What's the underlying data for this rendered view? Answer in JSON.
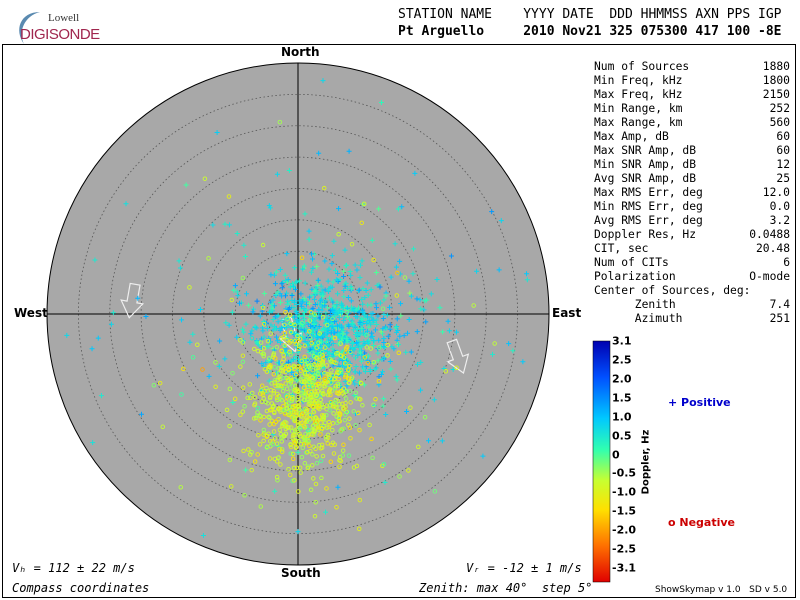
{
  "header": {
    "logo_top": "Lowell",
    "logo_bottom": "DIGISONDE",
    "line1": "STATION NAME    YYYY DATE  DDD HHMMSS AXN PPS IGP",
    "line2": "Pt Arguello     2010 Nov21 325 075300 417 100 -8E"
  },
  "stats": [
    {
      "label": "Num of Sources",
      "value": "1880"
    },
    {
      "label": "Min Freq, kHz",
      "value": "1800"
    },
    {
      "label": "Max Freq, kHz",
      "value": "2150"
    },
    {
      "label": "Min Range, km",
      "value": "252"
    },
    {
      "label": "Max Range, km",
      "value": "560"
    },
    {
      "label": "Max Amp, dB",
      "value": "60"
    },
    {
      "label": "Max SNR Amp, dB",
      "value": "60"
    },
    {
      "label": "Min SNR Amp, dB",
      "value": "12"
    },
    {
      "label": "Avg SNR Amp, dB",
      "value": "25"
    },
    {
      "label": "Max RMS Err, deg",
      "value": "12.0"
    },
    {
      "label": "Min RMS Err, deg",
      "value": "0.0"
    },
    {
      "label": "Avg RMS Err, deg",
      "value": "3.2"
    },
    {
      "label": "Doppler Res, Hz",
      "value": "0.0488"
    },
    {
      "label": "CIT, sec",
      "value": "20.48"
    },
    {
      "label": "Num of CITs",
      "value": "6"
    },
    {
      "label": "Polarization",
      "value": "O-mode"
    },
    {
      "label": "Center of Sources, deg:",
      "value": ""
    },
    {
      "label": "      Zenith",
      "value": "7.4"
    },
    {
      "label": "      Azimuth",
      "value": "251"
    }
  ],
  "compass": {
    "north": "North",
    "south": "South",
    "east": "East",
    "west": "West"
  },
  "footer": {
    "vh": "Vₕ = 112 ± 22 m/s",
    "vz": "Vᵣ = -12 ± 1 m/s",
    "coords": "Compass coordinates",
    "zenith": "Zenith: max 40°  step 5°",
    "version": "ShowSkymap v 1.0   SD v 5.0"
  },
  "legend": {
    "positive": "+ Positive",
    "negative": "o Negative",
    "colorbar_title": "Doppler, Hz",
    "ticks": [
      "3.1",
      "2.5",
      "2.0",
      "1.5",
      "1.0",
      "0.5",
      "0",
      "-0.5",
      "-1.0",
      "-1.5",
      "-2.0",
      "-2.5",
      "-3.1"
    ]
  },
  "colors": {
    "disk": "#a8a8a8",
    "positive_label": "#0000cc",
    "negative_label": "#cc0000",
    "logo_accent": "#a0264e"
  },
  "chart_data": {
    "type": "scatter",
    "projection": "polar skymap",
    "zenith_max_deg": 40,
    "zenith_step_deg": 5,
    "num_sources": 1880,
    "center_of_sources": {
      "zenith_deg": 7.4,
      "azimuth_deg": 251
    },
    "doppler_range_hz": [
      -3.1,
      3.1
    ],
    "clusters": [
      {
        "name": "Positive",
        "marker": "+",
        "azimuth_center_deg": 120,
        "zenith_center_deg": 5,
        "doppler_hz": 0.8
      },
      {
        "name": "Negative",
        "marker": "o",
        "azimuth_center_deg": 175,
        "zenith_center_deg": 14,
        "doppler_hz": -0.6
      }
    ]
  }
}
